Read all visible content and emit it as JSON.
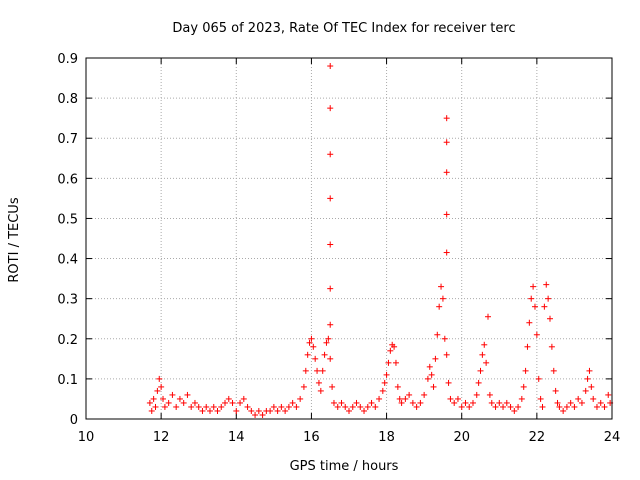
{
  "chart_data": {
    "type": "scatter",
    "title": "Day 065 of 2023, Rate Of TEC Index for receiver terc",
    "xlabel": "GPS time / hours",
    "ylabel": "ROTI / TECUs",
    "xlim": [
      10,
      24
    ],
    "ylim": [
      0,
      0.9
    ],
    "xticks": [
      "10",
      "12",
      "14",
      "16",
      "18",
      "20",
      "22",
      "24"
    ],
    "yticks": [
      "0",
      "0.1",
      "0.2",
      "0.3",
      "0.4",
      "0.5",
      "0.6",
      "0.7",
      "0.8",
      "0.9"
    ],
    "grid": true,
    "marker": "+",
    "color": "#ff0000",
    "series": [
      {
        "points": [
          [
            11.7,
            0.04
          ],
          [
            11.75,
            0.02
          ],
          [
            11.8,
            0.05
          ],
          [
            11.85,
            0.03
          ],
          [
            11.9,
            0.07
          ],
          [
            11.95,
            0.1
          ],
          [
            12.0,
            0.08
          ],
          [
            12.05,
            0.05
          ],
          [
            12.1,
            0.03
          ],
          [
            12.2,
            0.04
          ],
          [
            12.3,
            0.06
          ],
          [
            12.4,
            0.03
          ],
          [
            12.5,
            0.05
          ],
          [
            12.6,
            0.04
          ],
          [
            12.7,
            0.06
          ],
          [
            12.8,
            0.03
          ],
          [
            12.9,
            0.04
          ],
          [
            13.0,
            0.03
          ],
          [
            13.1,
            0.02
          ],
          [
            13.2,
            0.03
          ],
          [
            13.3,
            0.02
          ],
          [
            13.4,
            0.03
          ],
          [
            13.5,
            0.02
          ],
          [
            13.6,
            0.03
          ],
          [
            13.7,
            0.04
          ],
          [
            13.8,
            0.05
          ],
          [
            13.9,
            0.04
          ],
          [
            14.0,
            0.02
          ],
          [
            14.1,
            0.04
          ],
          [
            14.2,
            0.05
          ],
          [
            14.3,
            0.03
          ],
          [
            14.4,
            0.02
          ],
          [
            14.5,
            0.01
          ],
          [
            14.6,
            0.02
          ],
          [
            14.7,
            0.01
          ],
          [
            14.8,
            0.02
          ],
          [
            14.9,
            0.02
          ],
          [
            15.0,
            0.03
          ],
          [
            15.1,
            0.02
          ],
          [
            15.2,
            0.03
          ],
          [
            15.3,
            0.02
          ],
          [
            15.4,
            0.03
          ],
          [
            15.5,
            0.04
          ],
          [
            15.6,
            0.03
          ],
          [
            15.7,
            0.05
          ],
          [
            15.8,
            0.08
          ],
          [
            15.85,
            0.12
          ],
          [
            15.9,
            0.16
          ],
          [
            15.95,
            0.19
          ],
          [
            16.0,
            0.2
          ],
          [
            16.05,
            0.18
          ],
          [
            16.1,
            0.15
          ],
          [
            16.15,
            0.12
          ],
          [
            16.2,
            0.09
          ],
          [
            16.25,
            0.07
          ],
          [
            16.3,
            0.12
          ],
          [
            16.35,
            0.16
          ],
          [
            16.4,
            0.19
          ],
          [
            16.45,
            0.2
          ],
          [
            16.5,
            0.15
          ],
          [
            16.55,
            0.08
          ],
          [
            16.5,
            0.88
          ],
          [
            16.5,
            0.775
          ],
          [
            16.5,
            0.66
          ],
          [
            16.5,
            0.55
          ],
          [
            16.5,
            0.435
          ],
          [
            16.5,
            0.325
          ],
          [
            16.5,
            0.235
          ],
          [
            16.6,
            0.04
          ],
          [
            16.7,
            0.03
          ],
          [
            16.8,
            0.04
          ],
          [
            16.9,
            0.03
          ],
          [
            17.0,
            0.02
          ],
          [
            17.1,
            0.03
          ],
          [
            17.2,
            0.04
          ],
          [
            17.3,
            0.03
          ],
          [
            17.4,
            0.02
          ],
          [
            17.5,
            0.03
          ],
          [
            17.6,
            0.04
          ],
          [
            17.7,
            0.03
          ],
          [
            17.8,
            0.05
          ],
          [
            17.9,
            0.07
          ],
          [
            17.95,
            0.09
          ],
          [
            18.0,
            0.11
          ],
          [
            18.05,
            0.14
          ],
          [
            18.1,
            0.17
          ],
          [
            18.15,
            0.185
          ],
          [
            18.2,
            0.18
          ],
          [
            18.25,
            0.14
          ],
          [
            18.3,
            0.08
          ],
          [
            18.35,
            0.05
          ],
          [
            18.4,
            0.04
          ],
          [
            18.5,
            0.05
          ],
          [
            18.6,
            0.06
          ],
          [
            18.7,
            0.04
          ],
          [
            18.8,
            0.03
          ],
          [
            18.9,
            0.04
          ],
          [
            19.0,
            0.06
          ],
          [
            19.1,
            0.1
          ],
          [
            19.15,
            0.13
          ],
          [
            19.2,
            0.11
          ],
          [
            19.25,
            0.08
          ],
          [
            19.3,
            0.15
          ],
          [
            19.35,
            0.21
          ],
          [
            19.4,
            0.28
          ],
          [
            19.45,
            0.33
          ],
          [
            19.5,
            0.3
          ],
          [
            19.55,
            0.2
          ],
          [
            19.6,
            0.16
          ],
          [
            19.65,
            0.09
          ],
          [
            19.7,
            0.05
          ],
          [
            19.6,
            0.75
          ],
          [
            19.6,
            0.69
          ],
          [
            19.6,
            0.615
          ],
          [
            19.6,
            0.51
          ],
          [
            19.6,
            0.415
          ],
          [
            19.8,
            0.04
          ],
          [
            19.9,
            0.05
          ],
          [
            20.0,
            0.03
          ],
          [
            20.1,
            0.04
          ],
          [
            20.2,
            0.03
          ],
          [
            20.3,
            0.04
          ],
          [
            20.4,
            0.06
          ],
          [
            20.45,
            0.09
          ],
          [
            20.5,
            0.12
          ],
          [
            20.55,
            0.16
          ],
          [
            20.6,
            0.185
          ],
          [
            20.65,
            0.14
          ],
          [
            20.7,
            0.255
          ],
          [
            20.75,
            0.06
          ],
          [
            20.8,
            0.04
          ],
          [
            20.9,
            0.03
          ],
          [
            21.0,
            0.04
          ],
          [
            21.1,
            0.03
          ],
          [
            21.2,
            0.04
          ],
          [
            21.3,
            0.03
          ],
          [
            21.4,
            0.02
          ],
          [
            21.5,
            0.03
          ],
          [
            21.6,
            0.05
          ],
          [
            21.65,
            0.08
          ],
          [
            21.7,
            0.12
          ],
          [
            21.75,
            0.18
          ],
          [
            21.8,
            0.24
          ],
          [
            21.85,
            0.3
          ],
          [
            21.9,
            0.33
          ],
          [
            21.95,
            0.28
          ],
          [
            22.0,
            0.21
          ],
          [
            22.05,
            0.1
          ],
          [
            22.1,
            0.05
          ],
          [
            22.15,
            0.03
          ],
          [
            22.2,
            0.28
          ],
          [
            22.25,
            0.335
          ],
          [
            22.3,
            0.3
          ],
          [
            22.35,
            0.25
          ],
          [
            22.4,
            0.18
          ],
          [
            22.45,
            0.12
          ],
          [
            22.5,
            0.07
          ],
          [
            22.55,
            0.04
          ],
          [
            22.6,
            0.03
          ],
          [
            22.7,
            0.02
          ],
          [
            22.8,
            0.03
          ],
          [
            22.9,
            0.04
          ],
          [
            23.0,
            0.03
          ],
          [
            23.1,
            0.05
          ],
          [
            23.2,
            0.04
          ],
          [
            23.3,
            0.07
          ],
          [
            23.35,
            0.1
          ],
          [
            23.4,
            0.12
          ],
          [
            23.45,
            0.08
          ],
          [
            23.5,
            0.05
          ],
          [
            23.6,
            0.03
          ],
          [
            23.7,
            0.04
          ],
          [
            23.8,
            0.03
          ],
          [
            23.9,
            0.06
          ],
          [
            23.95,
            0.04
          ]
        ]
      }
    ]
  }
}
